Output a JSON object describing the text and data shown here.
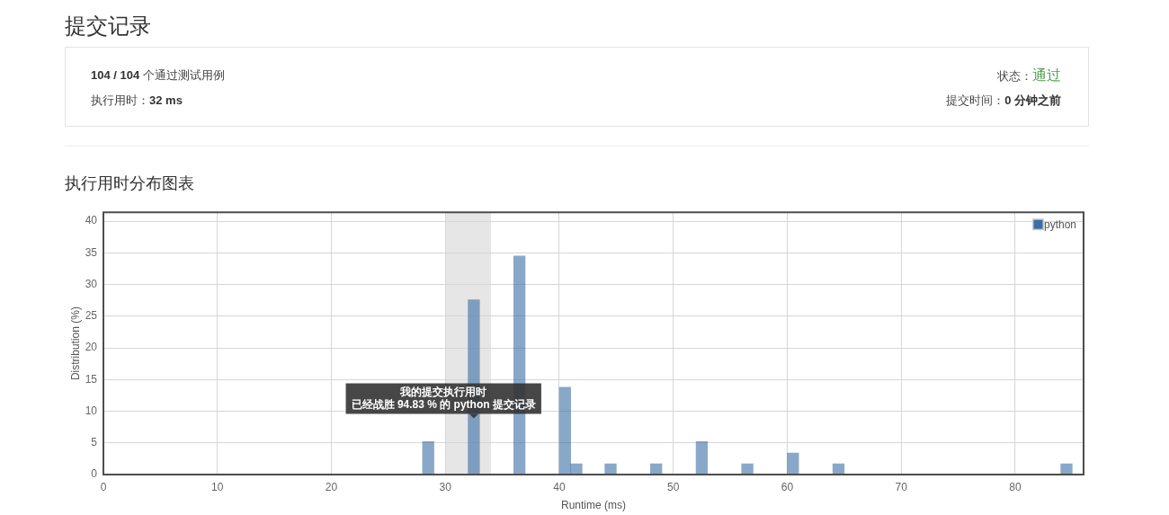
{
  "chart_data": [
    {
      "type": "other",
      "title": "提交记录",
      "annotations": [
        "104 / 104",
        "个通过测试用例",
        "执行用时：",
        "32 ms",
        "状态：",
        "通过",
        "提交时间：",
        "0 分钟之前"
      ]
    },
    {
      "type": "histogram",
      "title": "执行用时分布图表",
      "xlabel": "Runtime (ms)",
      "ylabel": "Distribution (%)",
      "bins": [
        28,
        29,
        30,
        31,
        32,
        33,
        34,
        35,
        36,
        37,
        38,
        39,
        40,
        41,
        42,
        43,
        44,
        45,
        46,
        47,
        48,
        49,
        50,
        51,
        52,
        53,
        54,
        55,
        56,
        57,
        58,
        59,
        60,
        61,
        62,
        63,
        64,
        65,
        66,
        67,
        68,
        69,
        70,
        71,
        72,
        73,
        74,
        75,
        76,
        77,
        78,
        79,
        80,
        81,
        82,
        83,
        84,
        85
      ],
      "series": [
        {
          "name": "python",
          "color": "#3a6ea5",
          "values": [
            5.2,
            0,
            0,
            0,
            27.6,
            0,
            0,
            0,
            34.5,
            0,
            0,
            0,
            13.8,
            1.7,
            0,
            0,
            1.7,
            0,
            0,
            0,
            1.7,
            0,
            0,
            0,
            5.2,
            0,
            0,
            0,
            1.7,
            0,
            0,
            0,
            3.4,
            0,
            0,
            0,
            1.7,
            0,
            0,
            0,
            0,
            0,
            0,
            0,
            0,
            0,
            0,
            0,
            0,
            0,
            0,
            0,
            0,
            0,
            0,
            0,
            1.7
          ]
        }
      ],
      "xlim": [
        0,
        86
      ],
      "ylim": [
        0,
        41.4
      ],
      "xticks": [
        0,
        10,
        20,
        30,
        40,
        50,
        60,
        70,
        80
      ],
      "yticks": [
        0,
        5,
        10,
        15,
        20,
        25,
        30,
        35,
        40
      ],
      "grid": true,
      "legend": "top right",
      "bands": [
        {
          "axis": "x",
          "from": 30,
          "to": 34,
          "color": "#e6e6e6"
        }
      ],
      "annotations": [
        {
          "text": "我的提交执行用时",
          "x": 32.5,
          "y": 9
        },
        "已经战胜 94.83 % 的 python 提交记录"
      ]
    }
  ]
}
